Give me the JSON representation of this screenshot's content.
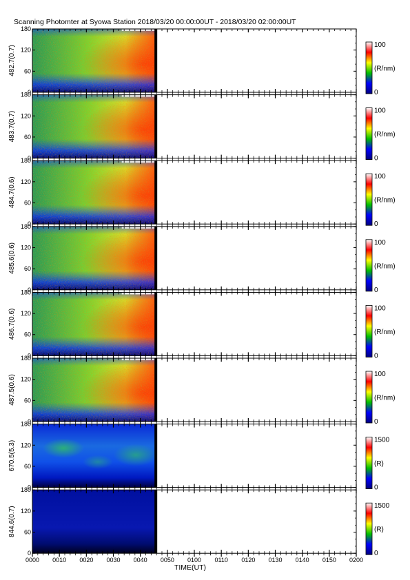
{
  "title": "Scanning Photomter at Syowa Station  2018/03/20 00:00:00UT - 2018/03/20 02:00:00UT",
  "chart_data": {
    "type": "heatmap",
    "xlabel": "TIME(UT)",
    "x_ticks": [
      "0000",
      "0010",
      "0020",
      "0030",
      "0040",
      "0050",
      "0100",
      "0110",
      "0120",
      "0130",
      "0140",
      "0150",
      "0200"
    ],
    "x_range_minutes": [
      0,
      120
    ],
    "data_end_minutes": 46,
    "y_ticks": [
      0,
      60,
      120,
      180
    ],
    "y_range": [
      0,
      180
    ],
    "colormap": [
      "#000080",
      "#0000ff",
      "#00c000",
      "#ffff00",
      "#ff0000",
      "#ffffff"
    ],
    "panels": [
      {
        "label": "482.7(0.7)",
        "cbar_max": "100",
        "cbar_min": "0",
        "unit": "(R/nm)",
        "style": "bright"
      },
      {
        "label": "483.7(0.7)",
        "cbar_max": "100",
        "cbar_min": "0",
        "unit": "(R/nm)",
        "style": "bright"
      },
      {
        "label": "484.7(0.6)",
        "cbar_max": "100",
        "cbar_min": "0",
        "unit": "(R/nm)",
        "style": "bright"
      },
      {
        "label": "485.6(0.6)",
        "cbar_max": "100",
        "cbar_min": "0",
        "unit": "(R/nm)",
        "style": "bright"
      },
      {
        "label": "486.7(0.6)",
        "cbar_max": "100",
        "cbar_min": "0",
        "unit": "(R/nm)",
        "style": "bright"
      },
      {
        "label": "487.5(0.6)",
        "cbar_max": "100",
        "cbar_min": "0",
        "unit": "(R/nm)",
        "style": "bright"
      },
      {
        "label": "670.5(5.3)",
        "cbar_max": "1500",
        "cbar_min": "0",
        "unit": "(R)",
        "style": "blue"
      },
      {
        "label": "844.6(0.7)",
        "cbar_max": "1500",
        "cbar_min": "0",
        "unit": "(R)",
        "style": "dark"
      }
    ]
  }
}
